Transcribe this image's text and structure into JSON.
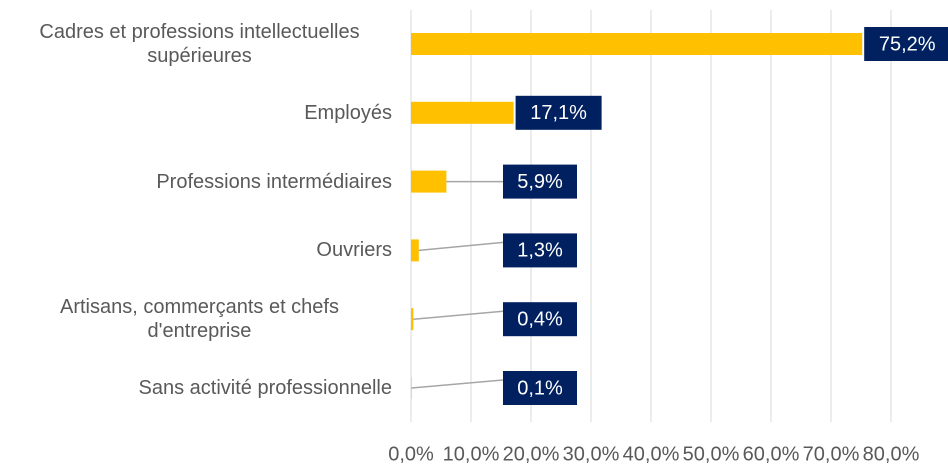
{
  "chart_data": {
    "type": "bar",
    "orientation": "horizontal",
    "categories": [
      "Cadres et professions intellectuelles supérieures",
      "Employés",
      "Professions intermédiaires",
      "Ouvriers",
      "Artisans, commerçants et chefs d'entreprise",
      "Sans activité professionnelle"
    ],
    "values": [
      75.2,
      17.1,
      5.9,
      1.3,
      0.4,
      0.1
    ],
    "value_labels": [
      "75,2%",
      "17,1%",
      "5,9%",
      "1,3%",
      "0,4%",
      "0,1%"
    ],
    "color": "#ffc000",
    "label_color": "#002060",
    "xlim": [
      0,
      80
    ],
    "xticks": [
      {
        "value": 0,
        "label": "0,0%"
      },
      {
        "value": 10,
        "label": "10,0%"
      },
      {
        "value": 20,
        "label": "20,0%"
      },
      {
        "value": 30,
        "label": "30,0%"
      },
      {
        "value": 40,
        "label": "40,0%"
      },
      {
        "value": 50,
        "label": "50,0%"
      },
      {
        "value": 60,
        "label": "60,0%"
      },
      {
        "value": 70,
        "label": "70,0%"
      },
      {
        "value": 80,
        "label": "80,0%"
      }
    ],
    "grid": true
  }
}
